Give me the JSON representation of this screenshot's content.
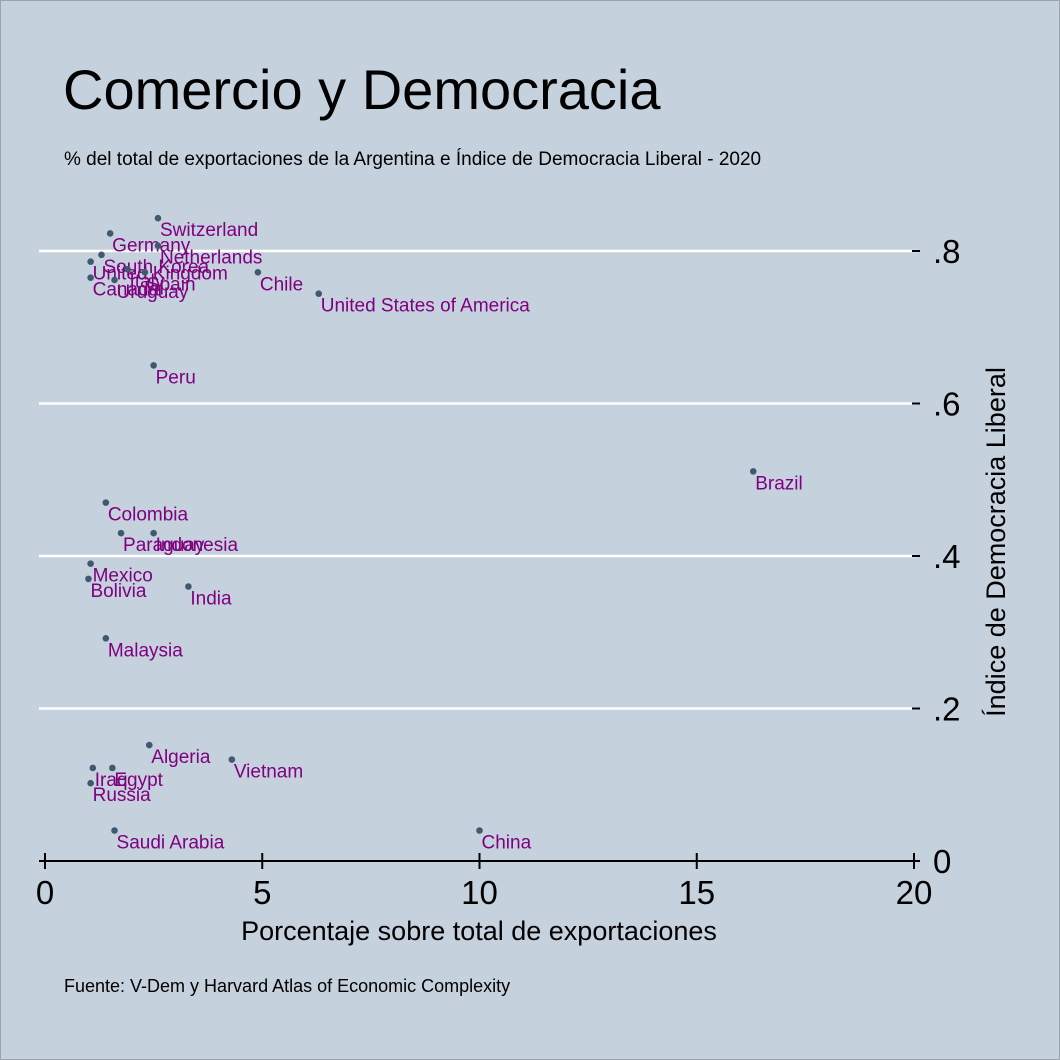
{
  "title": "Comercio y Democracia",
  "subtitle": "% del total de exportaciones de la Argentina e Índice de Democracia Liberal - 2020",
  "note": "Fuente: V-Dem y Harvard Atlas of Economic Complexity",
  "colors": {
    "background": "#c5d1dd",
    "marker": "#3f5a70",
    "label": "#800080",
    "grid": "#ffffff",
    "axis": "#000000"
  },
  "chart_data": {
    "type": "scatter",
    "title": "Comercio y Democracia",
    "subtitle": "% del total de exportaciones de la Argentina e Índice de Democracia Liberal - 2020",
    "xlabel": "Porcentaje sobre total de exportaciones",
    "ylabel": "Índice de Democracia Liberal",
    "xlim": [
      0,
      20
    ],
    "ylim": [
      0,
      0.85
    ],
    "xticks": [
      {
        "value": 0,
        "label": "0"
      },
      {
        "value": 5,
        "label": "5"
      },
      {
        "value": 10,
        "label": "10"
      },
      {
        "value": 15,
        "label": "15"
      },
      {
        "value": 20,
        "label": "20"
      }
    ],
    "yticks": [
      {
        "value": 0,
        "label": "0"
      },
      {
        "value": 0.2,
        "label": ".2"
      },
      {
        "value": 0.4,
        "label": ".4"
      },
      {
        "value": 0.6,
        "label": ".6"
      },
      {
        "value": 0.8,
        "label": ".8"
      }
    ],
    "y_axis_side": "right",
    "grid": "horizontal",
    "points": [
      {
        "label": "Switzerland",
        "x": 2.6,
        "y": 0.843
      },
      {
        "label": "Germany",
        "x": 1.5,
        "y": 0.823
      },
      {
        "label": "Netherlands",
        "x": 2.6,
        "y": 0.807
      },
      {
        "label": "South Korea",
        "x": 1.3,
        "y": 0.795
      },
      {
        "label": "United Kingdom",
        "x": 1.05,
        "y": 0.786
      },
      {
        "label": "Italy",
        "x": 1.9,
        "y": 0.776
      },
      {
        "label": "Spain",
        "x": 2.3,
        "y": 0.772
      },
      {
        "label": "Chile",
        "x": 4.9,
        "y": 0.772
      },
      {
        "label": "Canada",
        "x": 1.05,
        "y": 0.765
      },
      {
        "label": "Uruguay",
        "x": 1.6,
        "y": 0.762
      },
      {
        "label": "United States of America",
        "x": 6.3,
        "y": 0.744
      },
      {
        "label": "Peru",
        "x": 2.5,
        "y": 0.65
      },
      {
        "label": "Brazil",
        "x": 16.3,
        "y": 0.511
      },
      {
        "label": "Colombia",
        "x": 1.4,
        "y": 0.47
      },
      {
        "label": "Paraguay",
        "x": 1.75,
        "y": 0.43
      },
      {
        "label": "Indonesia",
        "x": 2.5,
        "y": 0.43
      },
      {
        "label": "Mexico",
        "x": 1.05,
        "y": 0.39
      },
      {
        "label": "Bolivia",
        "x": 1.0,
        "y": 0.37
      },
      {
        "label": "India",
        "x": 3.3,
        "y": 0.36
      },
      {
        "label": "Malaysia",
        "x": 1.4,
        "y": 0.292
      },
      {
        "label": "Algeria",
        "x": 2.4,
        "y": 0.152
      },
      {
        "label": "Vietnam",
        "x": 4.3,
        "y": 0.133
      },
      {
        "label": "Iraq",
        "x": 1.1,
        "y": 0.122
      },
      {
        "label": "Egypt",
        "x": 1.55,
        "y": 0.122
      },
      {
        "label": "Russia",
        "x": 1.05,
        "y": 0.102
      },
      {
        "label": "Saudi Arabia",
        "x": 1.6,
        "y": 0.04
      },
      {
        "label": "China",
        "x": 10.0,
        "y": 0.04
      }
    ]
  }
}
